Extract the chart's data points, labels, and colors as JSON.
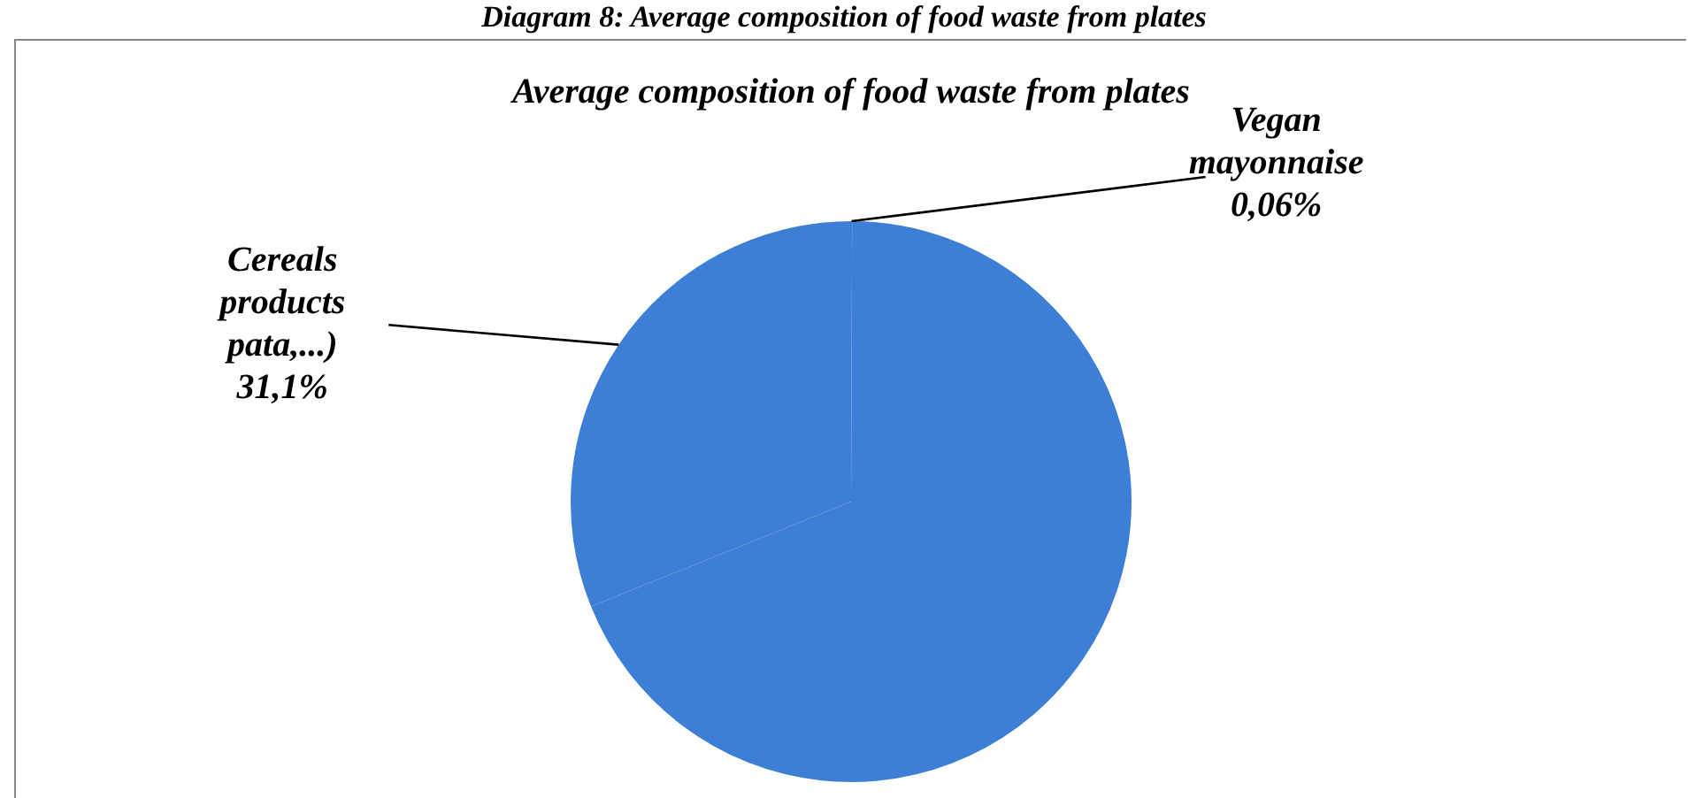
{
  "chart_data": {
    "type": "pie",
    "title": "Diagram 8: Average composition of food waste from plates",
    "subtitle": "Average composition of food waste from plates",
    "categories": [
      "Vegan mayonnaise",
      null,
      "Cereals products pata,...)"
    ],
    "values": [
      0.06,
      68.84,
      31.1
    ],
    "colors": [
      "#3d7fd6",
      "#3d7fd6",
      "#3d7fd6"
    ],
    "value_labels": [
      "0,06%",
      null,
      "31,1%"
    ],
    "legend": false
  }
}
